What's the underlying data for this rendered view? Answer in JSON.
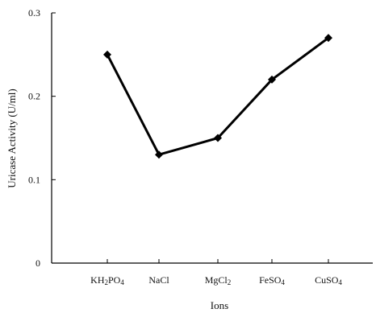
{
  "chart_data": {
    "type": "line",
    "title": "",
    "xlabel": "Ions",
    "ylabel": "Uricase Activity (U/ml)",
    "categories": [
      {
        "base": "KH",
        "sub1": "2",
        "mid": "PO",
        "sub2": "4"
      },
      {
        "base": "NaCl",
        "sub1": "",
        "mid": "",
        "sub2": ""
      },
      {
        "base": "MgCl",
        "sub1": "2",
        "mid": "",
        "sub2": ""
      },
      {
        "base": "FeSO",
        "sub1": "4",
        "mid": "",
        "sub2": ""
      },
      {
        "base": "CuSO",
        "sub1": "4",
        "mid": "",
        "sub2": ""
      }
    ],
    "values": [
      0.25,
      0.13,
      0.15,
      0.22,
      0.27
    ],
    "ylim": [
      0,
      0.3
    ],
    "yticks": [
      0,
      0.1,
      0.2,
      0.3
    ],
    "ytick_labels": [
      "0",
      "0.1",
      "0.2",
      "0.3"
    ],
    "grid": false,
    "marker": "diamond",
    "line_color": "#000000"
  }
}
